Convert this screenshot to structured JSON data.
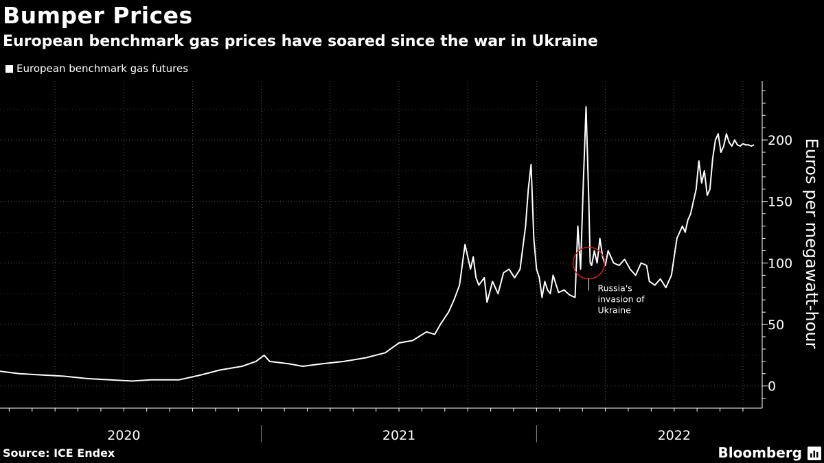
{
  "header": {
    "title": "Bumper Prices",
    "subtitle": "European benchmark gas prices have soared since the war in Ukraine"
  },
  "legend": {
    "label": "European benchmark gas futures"
  },
  "footer": {
    "source": "Source: ICE Endex",
    "brand": "Bloomberg"
  },
  "colors": {
    "background": "#000000",
    "line": "#ffffff",
    "grid": "#555555",
    "marker": "#d0201a"
  },
  "chart_data": {
    "type": "line",
    "title": "Bumper Prices",
    "subtitle": "European benchmark gas prices have soared since the war in Ukraine",
    "ylabel": "Euros per megawatt-hour",
    "xlabel": "",
    "ylim": [
      -18,
      248
    ],
    "xlim": [
      2019.55,
      2022.32
    ],
    "yticks": [
      0,
      50,
      100,
      150,
      200
    ],
    "ytick_labels": [
      "0",
      "50",
      "100",
      "150",
      "200"
    ],
    "year_labels": [
      {
        "label": "2020",
        "x": 2020.0
      },
      {
        "label": "2021",
        "x": 2021.0
      },
      {
        "label": "2022",
        "x": 2022.0
      }
    ],
    "year_separators": [
      2020.5,
      2021.5
    ],
    "grid": true,
    "legend_position": "top-left",
    "series": [
      {
        "name": "European benchmark gas futures",
        "x": [
          2019.55,
          2019.62,
          2019.7,
          2019.78,
          2019.87,
          2019.95,
          2020.03,
          2020.1,
          2020.15,
          2020.2,
          2020.28,
          2020.35,
          2020.43,
          2020.48,
          2020.51,
          2020.53,
          2020.6,
          2020.65,
          2020.72,
          2020.8,
          2020.88,
          2020.95,
          2021.0,
          2021.05,
          2021.1,
          2021.13,
          2021.15,
          2021.18,
          2021.2,
          2021.22,
          2021.24,
          2021.26,
          2021.27,
          2021.28,
          2021.29,
          2021.31,
          2021.32,
          2021.34,
          2021.36,
          2021.38,
          2021.4,
          2021.42,
          2021.44,
          2021.46,
          2021.47,
          2021.48,
          2021.49,
          2021.5,
          2021.51,
          2021.52,
          2021.53,
          2021.54,
          2021.55,
          2021.56,
          2021.57,
          2021.58,
          2021.6,
          2021.62,
          2021.64,
          2021.65,
          2021.66,
          2021.67,
          2021.68,
          2021.69,
          2021.695,
          2021.7,
          2021.71,
          2021.72,
          2021.73,
          2021.74,
          2021.75,
          2021.76,
          2021.78,
          2021.8,
          2021.82,
          2021.84,
          2021.86,
          2021.88,
          2021.9,
          2021.91,
          2021.93,
          2021.95,
          2021.97,
          2021.99,
          2022.01,
          2022.03,
          2022.04,
          2022.05,
          2022.06,
          2022.07,
          2022.08,
          2022.09,
          2022.1,
          2022.11,
          2022.12,
          2022.13,
          2022.14,
          2022.15,
          2022.16,
          2022.17,
          2022.18,
          2022.19,
          2022.2,
          2022.21,
          2022.22,
          2022.23,
          2022.24,
          2022.25,
          2022.26,
          2022.27,
          2022.28,
          2022.29
        ],
        "values": [
          12,
          10,
          9,
          8,
          6,
          5,
          4,
          5,
          5,
          5,
          9,
          13,
          16,
          20,
          25,
          20,
          18,
          16,
          18,
          20,
          23,
          27,
          35,
          37,
          44,
          42,
          50,
          60,
          70,
          82,
          115,
          95,
          105,
          88,
          82,
          88,
          68,
          85,
          75,
          92,
          95,
          88,
          95,
          130,
          160,
          180,
          120,
          95,
          88,
          72,
          85,
          78,
          75,
          90,
          83,
          76,
          78,
          74,
          72,
          130,
          95,
          165,
          227,
          150,
          100,
          98,
          110,
          100,
          120,
          105,
          98,
          110,
          100,
          98,
          103,
          95,
          90,
          100,
          98,
          85,
          82,
          87,
          80,
          90,
          120,
          130,
          125,
          135,
          140,
          150,
          160,
          183,
          165,
          175,
          155,
          160,
          185,
          200,
          205,
          190,
          195,
          205,
          198,
          195,
          200,
          196,
          195,
          197,
          196,
          196,
          195,
          196
        ]
      }
    ],
    "annotations": [
      {
        "label_lines": [
          "Russia's",
          "invasion of",
          "Ukraine"
        ],
        "x": 2021.69,
        "y": 100
      }
    ]
  }
}
